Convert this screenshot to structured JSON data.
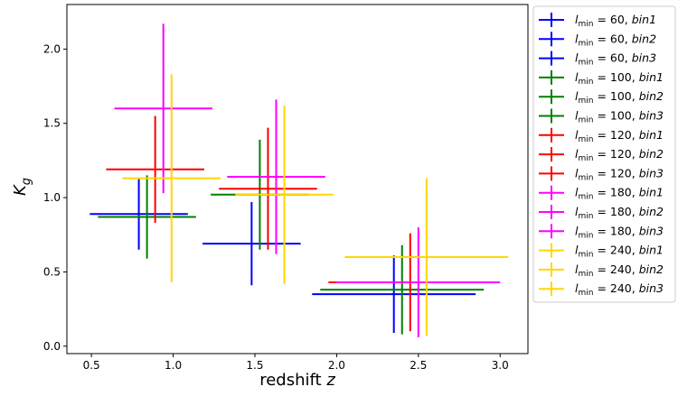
{
  "chart_data": {
    "type": "scatter",
    "title": "",
    "xlabel": "redshift",
    "xlabel_var": "z",
    "ylabel": "K",
    "ylabel_sub": "g",
    "xlim": [
      0.35,
      3.17
    ],
    "ylim": [
      -0.05,
      2.3
    ],
    "xticks": [
      "0.5",
      "1.0",
      "1.5",
      "2.0",
      "2.5",
      "3.0"
    ],
    "yticks": [
      "0.0",
      "0.5",
      "1.0",
      "1.5",
      "2.0"
    ],
    "grid": false,
    "legend_position": "outside-right",
    "series": [
      {
        "name_pre": "l",
        "name_sub": "min",
        "name_eq": " = 60, ",
        "name_bin": "bin1",
        "color": "#0000ff",
        "x": 0.79,
        "y": 0.89,
        "xerr": [
          0.3,
          0.3
        ],
        "yerr": [
          0.24,
          0.24
        ]
      },
      {
        "name_pre": "l",
        "name_sub": "min",
        "name_eq": " = 60, ",
        "name_bin": "bin2",
        "color": "#0000ff",
        "x": 1.48,
        "y": 0.69,
        "xerr": [
          0.3,
          0.3
        ],
        "yerr": [
          0.28,
          0.28
        ]
      },
      {
        "name_pre": "l",
        "name_sub": "min",
        "name_eq": " = 60, ",
        "name_bin": "bin3",
        "color": "#0000ff",
        "x": 2.35,
        "y": 0.35,
        "xerr": [
          0.5,
          0.5
        ],
        "yerr": [
          0.26,
          0.26
        ]
      },
      {
        "name_pre": "l",
        "name_sub": "min",
        "name_eq": " = 100, ",
        "name_bin": "bin1",
        "color": "#008000",
        "x": 0.84,
        "y": 0.87,
        "xerr": [
          0.3,
          0.3
        ],
        "yerr": [
          0.28,
          0.28
        ]
      },
      {
        "name_pre": "l",
        "name_sub": "min",
        "name_eq": " = 100, ",
        "name_bin": "bin2",
        "color": "#008000",
        "x": 1.53,
        "y": 1.02,
        "xerr": [
          0.3,
          0.3
        ],
        "yerr": [
          0.37,
          0.37
        ]
      },
      {
        "name_pre": "l",
        "name_sub": "min",
        "name_eq": " = 100, ",
        "name_bin": "bin3",
        "color": "#008000",
        "x": 2.4,
        "y": 0.38,
        "xerr": [
          0.5,
          0.5
        ],
        "yerr": [
          0.3,
          0.3
        ]
      },
      {
        "name_pre": "l",
        "name_sub": "min",
        "name_eq": " = 120, ",
        "name_bin": "bin1",
        "color": "#ff0000",
        "x": 0.89,
        "y": 1.19,
        "xerr": [
          0.3,
          0.3
        ],
        "yerr": [
          0.36,
          0.36
        ]
      },
      {
        "name_pre": "l",
        "name_sub": "min",
        "name_eq": " = 120, ",
        "name_bin": "bin2",
        "color": "#ff0000",
        "x": 1.58,
        "y": 1.06,
        "xerr": [
          0.3,
          0.3
        ],
        "yerr": [
          0.41,
          0.41
        ]
      },
      {
        "name_pre": "l",
        "name_sub": "min",
        "name_eq": " = 120, ",
        "name_bin": "bin3",
        "color": "#ff0000",
        "x": 2.45,
        "y": 0.43,
        "xerr": [
          0.5,
          0.5
        ],
        "yerr": [
          0.33,
          0.33
        ]
      },
      {
        "name_pre": "l",
        "name_sub": "min",
        "name_eq": " = 180, ",
        "name_bin": "bin1",
        "color": "#ff00ff",
        "x": 0.94,
        "y": 1.6,
        "xerr": [
          0.3,
          0.3
        ],
        "yerr": [
          0.57,
          0.57
        ]
      },
      {
        "name_pre": "l",
        "name_sub": "min",
        "name_eq": " = 180, ",
        "name_bin": "bin2",
        "color": "#ff00ff",
        "x": 1.63,
        "y": 1.14,
        "xerr": [
          0.3,
          0.3
        ],
        "yerr": [
          0.52,
          0.52
        ]
      },
      {
        "name_pre": "l",
        "name_sub": "min",
        "name_eq": " = 180, ",
        "name_bin": "bin3",
        "color": "#ff00ff",
        "x": 2.5,
        "y": 0.43,
        "xerr": [
          0.5,
          0.5
        ],
        "yerr": [
          0.37,
          0.37
        ]
      },
      {
        "name_pre": "l",
        "name_sub": "min",
        "name_eq": " = 240, ",
        "name_bin": "bin1",
        "color": "#ffd700",
        "x": 0.99,
        "y": 1.13,
        "xerr": [
          0.3,
          0.3
        ],
        "yerr": [
          0.7,
          0.7
        ]
      },
      {
        "name_pre": "l",
        "name_sub": "min",
        "name_eq": " = 240, ",
        "name_bin": "bin2",
        "color": "#ffd700",
        "x": 1.68,
        "y": 1.02,
        "xerr": [
          0.3,
          0.3
        ],
        "yerr": [
          0.6,
          0.6
        ]
      },
      {
        "name_pre": "l",
        "name_sub": "min",
        "name_eq": " = 240, ",
        "name_bin": "bin3",
        "color": "#ffd700",
        "x": 2.55,
        "y": 0.6,
        "xerr": [
          0.5,
          0.5
        ],
        "yerr": [
          0.53,
          0.53
        ]
      }
    ]
  }
}
